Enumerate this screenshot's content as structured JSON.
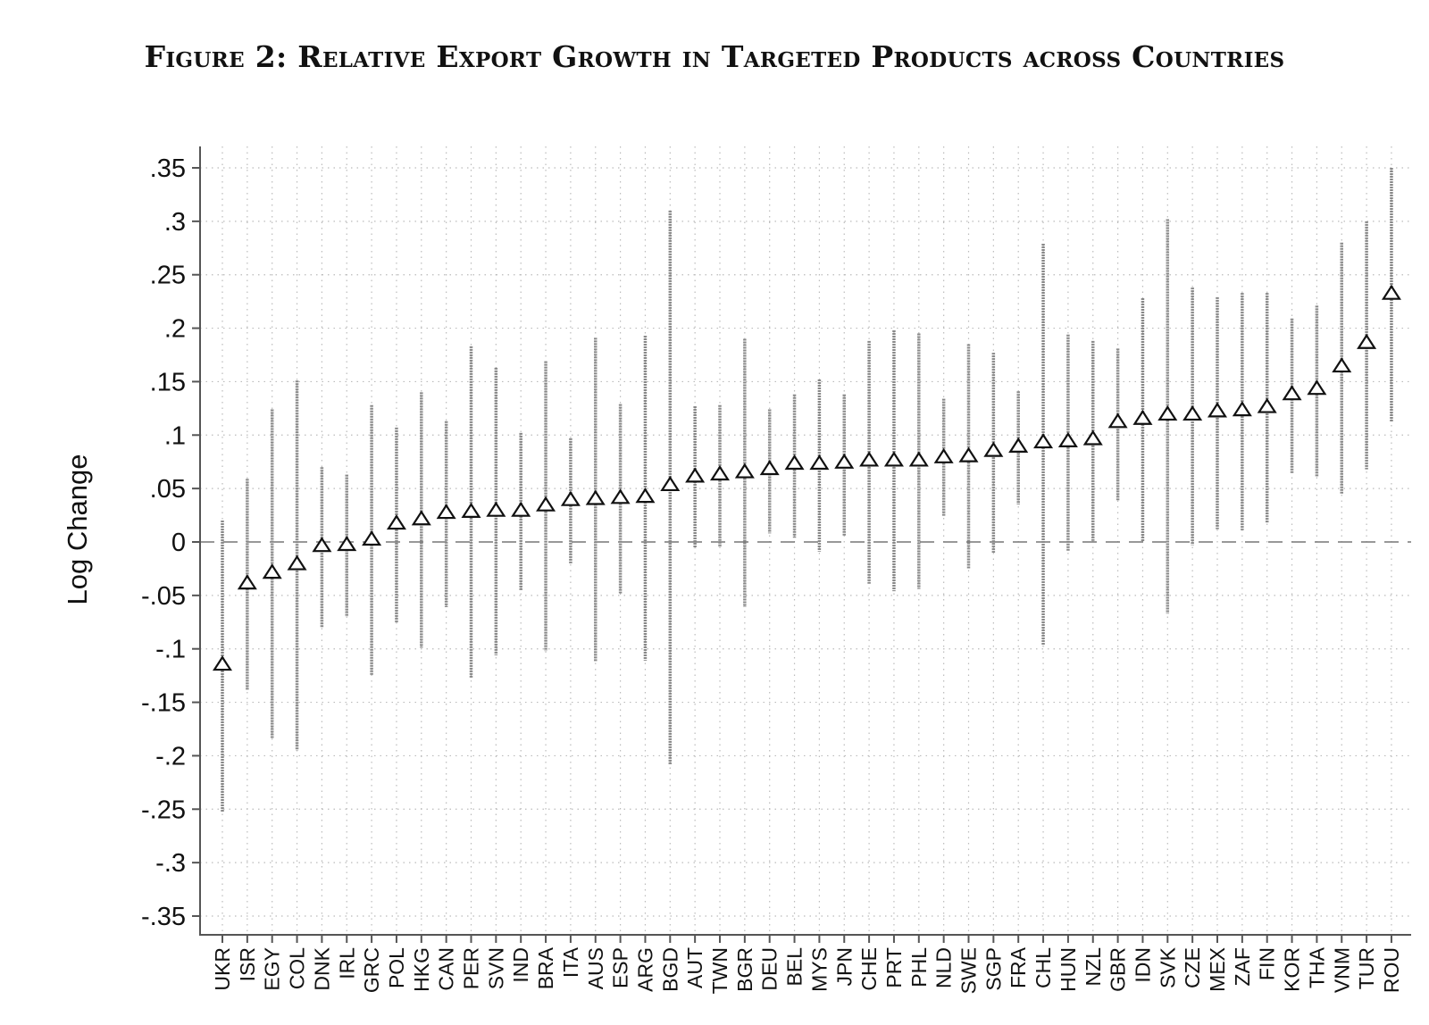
{
  "figure": {
    "title": "Figure 2: Relative Export Growth in Targeted Products across Countries"
  },
  "colors": {
    "ci": "#888888",
    "grid": "#bbbbbb",
    "zero": "#777777",
    "axis": "#555555",
    "marker": "#111111"
  },
  "chart_data": {
    "type": "scatter",
    "title": "Figure 2: Relative Export Growth in Targeted Products across Countries",
    "xlabel": "",
    "ylabel": "Log Change",
    "ylim": [
      -0.36,
      0.37
    ],
    "yticks": [
      0.35,
      0.3,
      0.25,
      0.2,
      0.15,
      0.1,
      0.05,
      0,
      -0.05,
      -0.1,
      -0.15,
      -0.2,
      -0.25,
      -0.3,
      -0.35
    ],
    "ytick_labels": [
      ".35",
      ".3",
      ".25",
      ".2",
      ".15",
      ".1",
      ".05",
      "0",
      "-.05",
      "-.1",
      "-.15",
      "-.2",
      "-.25",
      "-.3",
      "-.35"
    ],
    "grid": true,
    "reference_line": 0,
    "marker": "triangle",
    "categories": [
      "UKR",
      "ISR",
      "EGY",
      "COL",
      "DNK",
      "IRL",
      "GRC",
      "POL",
      "HKG",
      "CAN",
      "PER",
      "SVN",
      "IND",
      "BRA",
      "ITA",
      "AUS",
      "ESP",
      "ARG",
      "BGD",
      "AUT",
      "TWN",
      "BGR",
      "DEU",
      "BEL",
      "MYS",
      "JPN",
      "CHE",
      "PRT",
      "PHL",
      "NLD",
      "SWE",
      "SGP",
      "FRA",
      "CHL",
      "HUN",
      "NZL",
      "GBR",
      "IDN",
      "SVK",
      "CZE",
      "MEX",
      "ZAF",
      "FIN",
      "KOR",
      "THA",
      "VNM",
      "TUR",
      "ROU"
    ],
    "values": [
      -0.115,
      -0.039,
      -0.029,
      -0.021,
      -0.004,
      -0.003,
      0.002,
      0.017,
      0.021,
      0.027,
      0.028,
      0.029,
      0.029,
      0.034,
      0.039,
      0.04,
      0.041,
      0.042,
      0.053,
      0.061,
      0.063,
      0.065,
      0.068,
      0.073,
      0.073,
      0.074,
      0.076,
      0.076,
      0.076,
      0.079,
      0.08,
      0.085,
      0.089,
      0.093,
      0.094,
      0.096,
      0.112,
      0.115,
      0.119,
      0.119,
      0.122,
      0.123,
      0.126,
      0.138,
      0.143,
      0.164,
      0.186,
      0.232
    ],
    "ci_low": [
      -0.253,
      -0.139,
      -0.184,
      -0.195,
      -0.08,
      -0.07,
      -0.125,
      -0.076,
      -0.099,
      -0.061,
      -0.127,
      -0.106,
      -0.045,
      -0.102,
      -0.02,
      -0.112,
      -0.048,
      -0.111,
      -0.208,
      -0.006,
      -0.005,
      -0.061,
      0.008,
      0.004,
      -0.009,
      0.006,
      -0.039,
      -0.046,
      -0.044,
      0.024,
      -0.025,
      -0.01,
      0.035,
      -0.097,
      -0.009,
      0.001,
      0.039,
      0.0,
      -0.067,
      -0.003,
      0.012,
      0.011,
      0.018,
      0.064,
      0.061,
      0.045,
      0.068,
      0.112
    ],
    "ci_high": [
      0.02,
      0.059,
      0.124,
      0.151,
      0.07,
      0.063,
      0.128,
      0.107,
      0.14,
      0.113,
      0.183,
      0.163,
      0.102,
      0.169,
      0.097,
      0.191,
      0.129,
      0.193,
      0.31,
      0.127,
      0.128,
      0.19,
      0.124,
      0.138,
      0.152,
      0.138,
      0.188,
      0.198,
      0.195,
      0.134,
      0.185,
      0.177,
      0.141,
      0.279,
      0.194,
      0.188,
      0.181,
      0.228,
      0.302,
      0.238,
      0.229,
      0.233,
      0.233,
      0.209,
      0.221,
      0.28,
      0.3,
      0.35
    ]
  }
}
